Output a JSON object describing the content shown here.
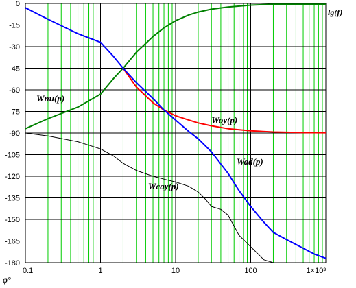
{
  "chart_data": {
    "type": "line",
    "x_scale": "log",
    "xlim": [
      0.1,
      1000
    ],
    "ylim": [
      -180,
      0
    ],
    "grid": true,
    "xlabel": "lg(f)",
    "ylabel": "φ°",
    "x_tick_labels": [
      "0.1",
      "1",
      "10",
      "100",
      "1×10³"
    ],
    "y_ticks": [
      0,
      -15,
      -30,
      -45,
      -60,
      -75,
      -90,
      -105,
      -120,
      -135,
      -150,
      -165,
      -180
    ],
    "colors": {
      "grid_major": "#000000",
      "grid_minor": "#00cc00",
      "frame": "#000000"
    },
    "series": [
      {
        "name": "Wnu(p)",
        "color": "#008000",
        "label_anchor": {
          "x": 0.14,
          "y": -68
        },
        "points": [
          [
            0.1,
            -87
          ],
          [
            0.2,
            -80
          ],
          [
            0.5,
            -72
          ],
          [
            1,
            -63
          ],
          [
            1.5,
            -52
          ],
          [
            2,
            -45
          ],
          [
            3,
            -34
          ],
          [
            5,
            -23
          ],
          [
            7,
            -17
          ],
          [
            10,
            -12
          ],
          [
            15,
            -8
          ],
          [
            20,
            -6
          ],
          [
            30,
            -4
          ],
          [
            50,
            -2.5
          ],
          [
            100,
            -1.2
          ],
          [
            200,
            -0.6
          ],
          [
            1000,
            -0.6
          ]
        ]
      },
      {
        "name": "Woy(p)",
        "color": "#ff0000",
        "label_anchor": {
          "x": 30,
          "y": -83
        },
        "points": [
          [
            2,
            -45
          ],
          [
            3,
            -58
          ],
          [
            5,
            -69
          ],
          [
            7,
            -74
          ],
          [
            10,
            -78
          ],
          [
            15,
            -81
          ],
          [
            20,
            -83
          ],
          [
            30,
            -85
          ],
          [
            50,
            -87
          ],
          [
            100,
            -88.5
          ],
          [
            200,
            -89.3
          ],
          [
            500,
            -89.7
          ],
          [
            1000,
            -89.8
          ]
        ]
      },
      {
        "name": "Wad(p)",
        "color": "#0000ff",
        "label_anchor": {
          "x": 65,
          "y": -112
        },
        "points": [
          [
            0.1,
            -3
          ],
          [
            0.2,
            -11
          ],
          [
            0.5,
            -21
          ],
          [
            1,
            -27
          ],
          [
            1.5,
            -37
          ],
          [
            2,
            -45
          ],
          [
            3,
            -55
          ],
          [
            5,
            -66
          ],
          [
            7,
            -74
          ],
          [
            10,
            -81
          ],
          [
            15,
            -89
          ],
          [
            20,
            -94
          ],
          [
            30,
            -103
          ],
          [
            50,
            -118
          ],
          [
            70,
            -130
          ],
          [
            100,
            -141
          ],
          [
            150,
            -152
          ],
          [
            200,
            -159
          ],
          [
            300,
            -164
          ],
          [
            500,
            -170
          ],
          [
            700,
            -174
          ],
          [
            1000,
            -177
          ]
        ]
      },
      {
        "name": "Wcay(p)",
        "color": "#000000",
        "label_anchor": {
          "x": 4.3,
          "y": -129
        },
        "points": [
          [
            0.1,
            -90
          ],
          [
            0.2,
            -92
          ],
          [
            0.5,
            -96
          ],
          [
            1,
            -101
          ],
          [
            1.5,
            -106
          ],
          [
            2,
            -111
          ],
          [
            3,
            -116
          ],
          [
            5,
            -120
          ],
          [
            7,
            -122
          ],
          [
            10,
            -124
          ],
          [
            15,
            -127
          ],
          [
            20,
            -131
          ],
          [
            25,
            -136
          ],
          [
            30,
            -141
          ],
          [
            40,
            -143
          ],
          [
            50,
            -147
          ],
          [
            70,
            -161
          ],
          [
            100,
            -169
          ],
          [
            150,
            -178
          ],
          [
            200,
            -180
          ]
        ]
      }
    ]
  }
}
